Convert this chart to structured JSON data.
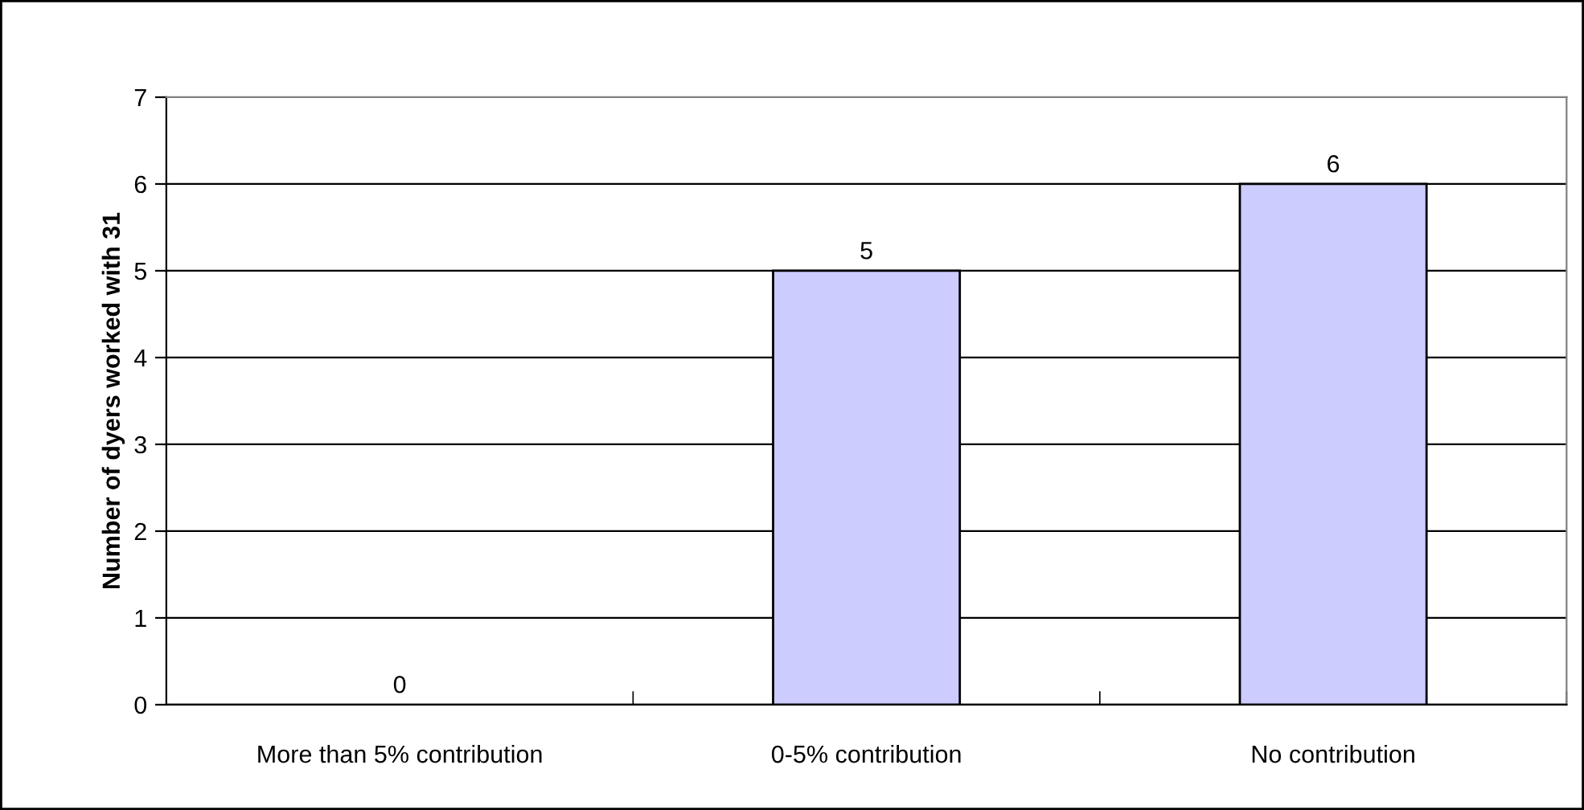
{
  "chart_data": {
    "type": "bar",
    "ylabel": "Number of dyers worked with 31",
    "categories": [
      "More than 5% contribution",
      "0-5% contribution",
      "No contribution"
    ],
    "values": [
      0,
      5,
      6
    ],
    "color": "#ccccff",
    "ylim": [
      0,
      7
    ],
    "yticks": [
      0,
      1,
      2,
      3,
      4,
      5,
      6,
      7
    ],
    "grid": "y",
    "data_labels": true
  }
}
